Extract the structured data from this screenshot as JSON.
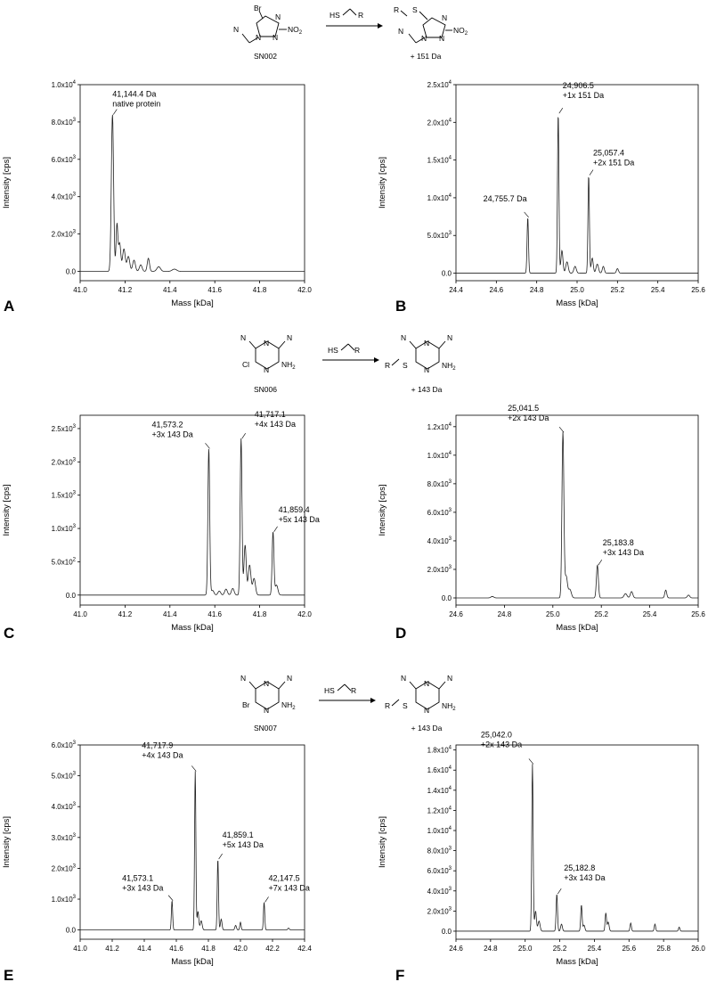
{
  "schemes": [
    {
      "compound": "SN002",
      "product": "+ 151 Da",
      "reactant": {
        "atoms": [
          "Br",
          "N",
          "N",
          "N",
          "N",
          "NO2"
        ]
      },
      "reagent": {
        "atoms": [
          "HS",
          "R"
        ]
      },
      "product_atoms": [
        "R",
        "S",
        "N",
        "N",
        "N",
        "N",
        "NO2"
      ]
    },
    {
      "compound": "SN006",
      "product": "+ 143 Da",
      "reactant": {
        "atoms": [
          "N",
          "N",
          "N",
          "N",
          "Cl",
          "NH2"
        ]
      },
      "reagent": {
        "atoms": [
          "HS",
          "R"
        ]
      },
      "product_atoms": [
        "N",
        "N",
        "N",
        "N",
        "R",
        "S",
        "NH2"
      ]
    },
    {
      "compound": "SN007",
      "product": "+ 143 Da",
      "reactant": {
        "atoms": [
          "N",
          "N",
          "N",
          "N",
          "Br",
          "NH2"
        ]
      },
      "reagent": {
        "atoms": [
          "HS",
          "R"
        ]
      },
      "product_atoms": [
        "N",
        "N",
        "N",
        "N",
        "R",
        "S",
        "NH2"
      ]
    }
  ],
  "chart_data": [
    {
      "panel": "A",
      "type": "line",
      "xlabel": "Mass [kDa]",
      "ylabel": "Intensity [cps]",
      "xlim": [
        41.0,
        42.0
      ],
      "ylim": [
        -500,
        10000
      ],
      "xticks": [
        "41.0",
        "41.2",
        "41.4",
        "41.6",
        "41.8",
        "42.0"
      ],
      "ytick_values": [
        0,
        2000,
        4000,
        6000,
        8000,
        10000
      ],
      "yticks": [
        [
          "0.0",
          ""
        ],
        [
          "2.0x10",
          "3"
        ],
        [
          "4.0x10",
          "3"
        ],
        [
          "6.0x10",
          "3"
        ],
        [
          "8.0x10",
          "3"
        ],
        [
          "1.0x10",
          "4"
        ]
      ],
      "peaks": [
        {
          "x": 41.144,
          "y": 8400,
          "w": 0.005
        },
        {
          "x": 41.164,
          "y": 2500,
          "w": 0.004
        },
        {
          "x": 41.176,
          "y": 1500,
          "w": 0.005
        },
        {
          "x": 41.195,
          "y": 1200,
          "w": 0.006
        },
        {
          "x": 41.215,
          "y": 800,
          "w": 0.006
        },
        {
          "x": 41.24,
          "y": 600,
          "w": 0.006
        },
        {
          "x": 41.27,
          "y": 350,
          "w": 0.006
        },
        {
          "x": 41.304,
          "y": 700,
          "w": 0.005
        },
        {
          "x": 41.35,
          "y": 250,
          "w": 0.008
        },
        {
          "x": 41.42,
          "y": 120,
          "w": 0.01
        }
      ],
      "annotations": [
        {
          "x": 41.144,
          "y": 8400,
          "lines": [
            "41,144.4 Da",
            "native protein"
          ]
        }
      ]
    },
    {
      "panel": "B",
      "type": "line",
      "xlabel": "Mass [kDa]",
      "ylabel": "Intensity [cps]",
      "xlim": [
        24.4,
        25.6
      ],
      "ylim": [
        -1000,
        25000
      ],
      "xticks": [
        "24.4",
        "24.6",
        "24.8",
        "25.0",
        "25.2",
        "25.4",
        "25.6"
      ],
      "ytick_values": [
        0,
        5000,
        10000,
        15000,
        20000,
        25000
      ],
      "yticks": [
        [
          "0.0",
          ""
        ],
        [
          "5.0x10",
          "3"
        ],
        [
          "1.0x10",
          "4"
        ],
        [
          "1.5x10",
          "4"
        ],
        [
          "2.0x10",
          "4"
        ],
        [
          "2.5x10",
          "4"
        ]
      ],
      "peaks": [
        {
          "x": 24.7557,
          "y": 7400,
          "w": 0.0035
        },
        {
          "x": 24.9065,
          "y": 21200,
          "w": 0.0035
        },
        {
          "x": 24.925,
          "y": 3000,
          "w": 0.005
        },
        {
          "x": 24.95,
          "y": 1500,
          "w": 0.006
        },
        {
          "x": 24.99,
          "y": 900,
          "w": 0.006
        },
        {
          "x": 25.0574,
          "y": 13000,
          "w": 0.0035
        },
        {
          "x": 25.075,
          "y": 2000,
          "w": 0.005
        },
        {
          "x": 25.1,
          "y": 1200,
          "w": 0.006
        },
        {
          "x": 25.13,
          "y": 900,
          "w": 0.005
        },
        {
          "x": 25.2,
          "y": 600,
          "w": 0.005
        }
      ],
      "annotations": [
        {
          "x": 24.7557,
          "y": 7400,
          "lines": [
            "24,755.7 Da"
          ]
        },
        {
          "x": 24.9065,
          "y": 21200,
          "lines": [
            "24,906.5",
            "+1x 151 Da"
          ]
        },
        {
          "x": 25.0574,
          "y": 13000,
          "lines": [
            "25,057.4",
            "+2x 151 Da"
          ]
        }
      ]
    },
    {
      "panel": "C",
      "type": "line",
      "xlabel": "Mass [kDa]",
      "ylabel": "Intensity [cps]",
      "xlim": [
        41.0,
        42.0
      ],
      "ylim": [
        -150,
        2700
      ],
      "xticks": [
        "41.0",
        "41.2",
        "41.4",
        "41.6",
        "41.8",
        "42.0"
      ],
      "ytick_values": [
        0,
        500,
        1000,
        1500,
        2000,
        2500
      ],
      "yticks": [
        [
          "0.0",
          ""
        ],
        [
          "5.0x10",
          "2"
        ],
        [
          "1.0x10",
          "3"
        ],
        [
          "1.5x10",
          "3"
        ],
        [
          "2.0x10",
          "3"
        ],
        [
          "2.5x10",
          "3"
        ]
      ],
      "peaks": [
        {
          "x": 41.5732,
          "y": 2200,
          "w": 0.004
        },
        {
          "x": 41.59,
          "y": 70,
          "w": 0.006
        },
        {
          "x": 41.62,
          "y": 60,
          "w": 0.006
        },
        {
          "x": 41.65,
          "y": 90,
          "w": 0.006
        },
        {
          "x": 41.68,
          "y": 100,
          "w": 0.006
        },
        {
          "x": 41.7171,
          "y": 2350,
          "w": 0.004
        },
        {
          "x": 41.735,
          "y": 750,
          "w": 0.005
        },
        {
          "x": 41.755,
          "y": 450,
          "w": 0.006
        },
        {
          "x": 41.775,
          "y": 250,
          "w": 0.006
        },
        {
          "x": 41.8594,
          "y": 950,
          "w": 0.004
        },
        {
          "x": 41.875,
          "y": 150,
          "w": 0.006
        }
      ],
      "annotations": [
        {
          "x": 41.5732,
          "y": 2200,
          "lines": [
            "41,573.2",
            "+3x 143 Da"
          ]
        },
        {
          "x": 41.7171,
          "y": 2350,
          "lines": [
            "41,717.1",
            "+4x 143 Da"
          ]
        },
        {
          "x": 41.8594,
          "y": 950,
          "lines": [
            "41,859.4",
            "+5x 143 Da"
          ]
        }
      ]
    },
    {
      "panel": "D",
      "type": "line",
      "xlabel": "Mass [kDa]",
      "ylabel": "Intensity [cps]",
      "xlim": [
        24.6,
        25.6
      ],
      "ylim": [
        -500,
        12800
      ],
      "xticks": [
        "24.6",
        "24.8",
        "25.0",
        "25.2",
        "25.4",
        "25.6"
      ],
      "ytick_values": [
        0,
        2000,
        4000,
        6000,
        8000,
        10000,
        12000
      ],
      "yticks": [
        [
          "0.0",
          ""
        ],
        [
          "2.0x10",
          "3"
        ],
        [
          "4.0x10",
          "3"
        ],
        [
          "6.0x10",
          "3"
        ],
        [
          "8.0x10",
          "3"
        ],
        [
          "1.0x10",
          "4"
        ],
        [
          "1.2x10",
          "4"
        ]
      ],
      "peaks": [
        {
          "x": 25.0415,
          "y": 11600,
          "w": 0.004
        },
        {
          "x": 25.055,
          "y": 1500,
          "w": 0.005
        },
        {
          "x": 25.07,
          "y": 600,
          "w": 0.006
        },
        {
          "x": 25.1838,
          "y": 2300,
          "w": 0.004
        },
        {
          "x": 25.3,
          "y": 300,
          "w": 0.006
        },
        {
          "x": 25.325,
          "y": 450,
          "w": 0.005
        },
        {
          "x": 25.466,
          "y": 550,
          "w": 0.004
        },
        {
          "x": 25.56,
          "y": 200,
          "w": 0.005
        },
        {
          "x": 24.75,
          "y": 100,
          "w": 0.006
        }
      ],
      "annotations": [
        {
          "x": 25.0415,
          "y": 11600,
          "lines": [
            "25,041.5",
            "+2x 143 Da"
          ]
        },
        {
          "x": 25.1838,
          "y": 2300,
          "lines": [
            "25,183.8",
            "+3x 143 Da"
          ]
        }
      ]
    },
    {
      "panel": "E",
      "type": "line",
      "xlabel": "Mass [kDa]",
      "ylabel": "Intensity [cps]",
      "xlim": [
        41.0,
        42.4
      ],
      "ylim": [
        -300,
        6000
      ],
      "xticks": [
        "41.0",
        "41.2",
        "41.4",
        "41.6",
        "41.8",
        "42.0",
        "42.2",
        "42.4"
      ],
      "ytick_values": [
        0,
        1000,
        2000,
        3000,
        4000,
        5000,
        6000
      ],
      "yticks": [
        [
          "0.0",
          ""
        ],
        [
          "1.0x10",
          "3"
        ],
        [
          "2.0x10",
          "3"
        ],
        [
          "3.0x10",
          "3"
        ],
        [
          "4.0x10",
          "3"
        ],
        [
          "5.0x10",
          "3"
        ],
        [
          "6.0x10",
          "3"
        ]
      ],
      "peaks": [
        {
          "x": 41.5731,
          "y": 950,
          "w": 0.004
        },
        {
          "x": 41.7179,
          "y": 5150,
          "w": 0.004
        },
        {
          "x": 41.735,
          "y": 600,
          "w": 0.005
        },
        {
          "x": 41.755,
          "y": 300,
          "w": 0.006
        },
        {
          "x": 41.8591,
          "y": 2300,
          "w": 0.004
        },
        {
          "x": 41.88,
          "y": 350,
          "w": 0.005
        },
        {
          "x": 41.97,
          "y": 150,
          "w": 0.005
        },
        {
          "x": 42.0,
          "y": 250,
          "w": 0.004
        },
        {
          "x": 42.1475,
          "y": 900,
          "w": 0.004
        },
        {
          "x": 42.3,
          "y": 60,
          "w": 0.005
        }
      ],
      "annotations": [
        {
          "x": 41.5731,
          "y": 950,
          "lines": [
            "41,573.1",
            "+3x 143 Da"
          ]
        },
        {
          "x": 41.7179,
          "y": 5150,
          "lines": [
            "41,717.9",
            "+4x 143 Da"
          ]
        },
        {
          "x": 41.8591,
          "y": 2300,
          "lines": [
            "41,859.1",
            "+5x 143 Da"
          ]
        },
        {
          "x": 42.1475,
          "y": 900,
          "lines": [
            "42,147.5",
            "+7x 143 Da"
          ]
        }
      ]
    },
    {
      "panel": "F",
      "type": "line",
      "xlabel": "Mass [kDa]",
      "ylabel": "Intensity [cps]",
      "xlim": [
        24.6,
        26.0
      ],
      "ylim": [
        -800,
        18500
      ],
      "xticks": [
        "24.6",
        "24.8",
        "25.0",
        "25.2",
        "25.4",
        "25.6",
        "25.8",
        "26.0"
      ],
      "ytick_values": [
        0,
        2000,
        4000,
        6000,
        8000,
        10000,
        12000,
        14000,
        16000,
        18000
      ],
      "yticks": [
        [
          "0.0",
          ""
        ],
        [
          "2.0x10",
          "3"
        ],
        [
          "4.0x10",
          "3"
        ],
        [
          "6.0x10",
          "3"
        ],
        [
          "8.0x10",
          "3"
        ],
        [
          "1.0x10",
          "4"
        ],
        [
          "1.2x10",
          "4"
        ],
        [
          "1.4x10",
          "4"
        ],
        [
          "1.6x10",
          "4"
        ],
        [
          "1.8x10",
          "4"
        ]
      ],
      "peaks": [
        {
          "x": 25.042,
          "y": 16600,
          "w": 0.004
        },
        {
          "x": 25.06,
          "y": 2000,
          "w": 0.005
        },
        {
          "x": 25.08,
          "y": 1000,
          "w": 0.006
        },
        {
          "x": 25.1828,
          "y": 3700,
          "w": 0.004
        },
        {
          "x": 25.21,
          "y": 700,
          "w": 0.005
        },
        {
          "x": 25.325,
          "y": 2600,
          "w": 0.004
        },
        {
          "x": 25.34,
          "y": 600,
          "w": 0.005
        },
        {
          "x": 25.466,
          "y": 1800,
          "w": 0.004
        },
        {
          "x": 25.48,
          "y": 900,
          "w": 0.005
        },
        {
          "x": 25.61,
          "y": 800,
          "w": 0.004
        },
        {
          "x": 25.75,
          "y": 700,
          "w": 0.004
        },
        {
          "x": 25.89,
          "y": 400,
          "w": 0.004
        }
      ],
      "annotations": [
        {
          "x": 25.042,
          "y": 16600,
          "lines": [
            "25,042.0",
            "+2x 143 Da"
          ]
        },
        {
          "x": 25.1828,
          "y": 3700,
          "lines": [
            "25,182.8",
            "+3x 143 Da"
          ]
        }
      ]
    }
  ]
}
